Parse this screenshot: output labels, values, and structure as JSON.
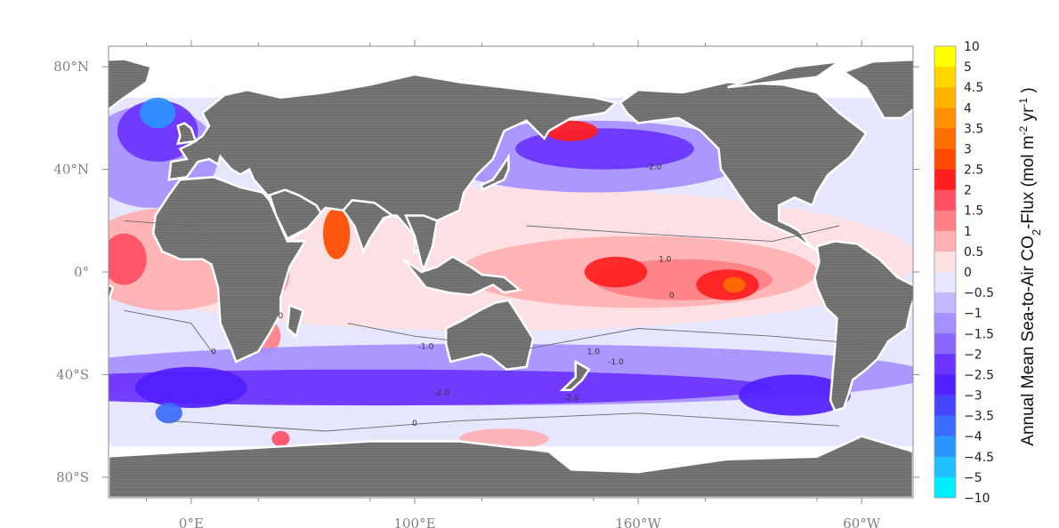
{
  "chart_data": {
    "type": "heatmap",
    "title": "",
    "colorbar_label": "Annual Mean Sea-to-Air CO",
    "colorbar_label_sub": "2",
    "colorbar_label_tail": "-Flux  (mol m",
    "colorbar_label_sup1": "-2",
    "colorbar_label_mid": " yr",
    "colorbar_label_sup2": "-1",
    "colorbar_label_end": " )",
    "x_ticks": [
      {
        "label": "0°E",
        "lon": 0
      },
      {
        "label": "100°E",
        "lon": 100
      },
      {
        "label": "160°W",
        "lon": 200
      },
      {
        "label": "60°W",
        "lon": 300
      }
    ],
    "y_ticks": [
      {
        "label": "80°N",
        "lat": 80
      },
      {
        "label": "40°N",
        "lat": 40
      },
      {
        "label": "0°",
        "lat": 0
      },
      {
        "label": "40°S",
        "lat": -40
      },
      {
        "label": "80°S",
        "lat": -80
      }
    ],
    "lon_range": [
      -37,
      323
    ],
    "lat_range": [
      -88,
      88
    ],
    "land_color": "#6e6e6e",
    "colorbar_levels": [
      "10",
      "5",
      "4.5",
      "4",
      "3.5",
      "3",
      "2.5",
      "2",
      "1.5",
      "1",
      "0.5",
      "0",
      "−0.5",
      "−1",
      "−1.5",
      "−2",
      "−2.5",
      "−3",
      "−3.5",
      "−4",
      "−4.5",
      "−5",
      "−10"
    ],
    "colorbar_colors": [
      "#ffff00",
      "#ffd700",
      "#ffb400",
      "#ff9100",
      "#ff6e00",
      "#ff4b00",
      "#ff1e1e",
      "#ff4f63",
      "#ff8086",
      "#ffb0b2",
      "#ffe0e2",
      "#e6e6ff",
      "#c4b8ff",
      "#a690ff",
      "#8866ff",
      "#6a33ff",
      "#5020ff",
      "#4444ff",
      "#3b6cff",
      "#2b95ff",
      "#20bfff",
      "#00eeff"
    ],
    "contour_labels": [
      "-2.0",
      "1.0",
      "0",
      "0",
      "-1.0",
      "-2.0",
      "1.0",
      "0",
      "-1.0",
      "-2.0",
      "0"
    ],
    "grid": false
  }
}
